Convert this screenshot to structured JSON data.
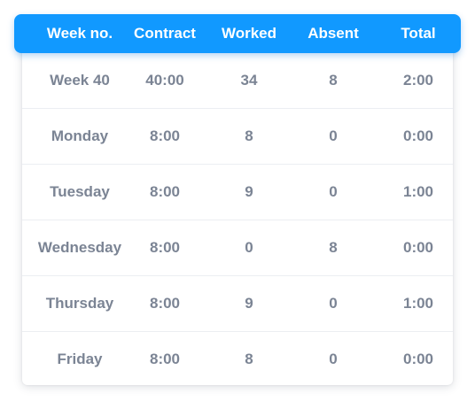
{
  "table": {
    "headers": [
      "Week no.",
      "Contract",
      "Worked",
      "Absent",
      "Total"
    ],
    "rows": [
      [
        "Week 40",
        "40:00",
        "34",
        "8",
        "2:00"
      ],
      [
        "Monday",
        "8:00",
        "8",
        "0",
        "0:00"
      ],
      [
        "Tuesday",
        "8:00",
        "9",
        "0",
        "1:00"
      ],
      [
        "Wednesday",
        "8:00",
        "0",
        "8",
        "0:00"
      ],
      [
        "Thursday",
        "8:00",
        "9",
        "0",
        "1:00"
      ],
      [
        "Friday",
        "8:00",
        "8",
        "0",
        "0:00"
      ]
    ]
  },
  "colors": {
    "header_background": "#1199ff",
    "header_text": "#ffffff",
    "cell_text": "#7b8494",
    "row_divider": "#eceef2"
  }
}
